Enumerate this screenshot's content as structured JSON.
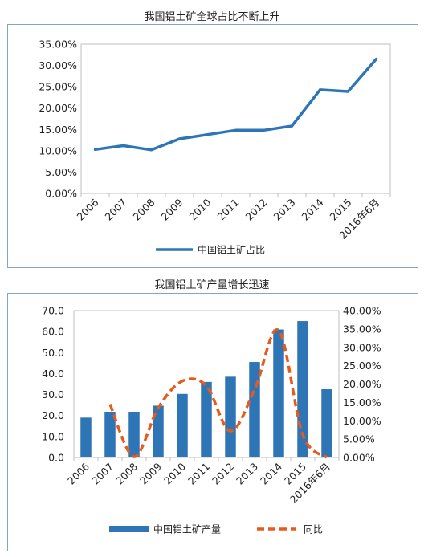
{
  "chart_data": [
    {
      "type": "line",
      "title": "我国铝土矿全球占比不断上升",
      "categories": [
        "2006",
        "2007",
        "2008",
        "2009",
        "2010",
        "2011",
        "2012",
        "2013",
        "2014",
        "2015",
        "2016年6月"
      ],
      "series": [
        {
          "name": "中国铝土矿占比",
          "values": [
            10.3,
            11.2,
            10.2,
            12.8,
            13.8,
            14.8,
            14.8,
            15.8,
            24.3,
            23.9,
            31.5
          ],
          "color": "#2e75b6"
        }
      ],
      "ylim": [
        0,
        35
      ],
      "yticks": [
        "0.00%",
        "5.00%",
        "10.00%",
        "15.00%",
        "20.00%",
        "25.00%",
        "30.00%",
        "35.00%"
      ],
      "grid": false,
      "legend": "bottom"
    },
    {
      "type": "bar",
      "title": "我国铝土矿产量增长迅速",
      "categories": [
        "2006",
        "2007",
        "2008",
        "2009",
        "2010",
        "2011",
        "2012",
        "2013",
        "2014",
        "2015",
        "2016年6月"
      ],
      "series": [
        {
          "name": "中国铝土矿产量",
          "type": "bar",
          "axis": "left",
          "values": [
            19.0,
            21.8,
            21.8,
            24.7,
            30.3,
            36.0,
            38.5,
            45.5,
            61.0,
            65.0,
            32.5
          ],
          "color": "#2e75b6"
        },
        {
          "name": "同比",
          "type": "line",
          "axis": "right",
          "values": [
            null,
            14.5,
            0.2,
            13.5,
            20.8,
            19.5,
            7.2,
            18.5,
            34.6,
            6.2,
            0.0
          ],
          "color": "#e85a1b"
        }
      ],
      "ylim_left": [
        0,
        70
      ],
      "ylim_right": [
        0,
        40
      ],
      "yticks_left": [
        "0.0",
        "10.0",
        "20.0",
        "30.0",
        "40.0",
        "50.0",
        "60.0",
        "70.0"
      ],
      "yticks_right": [
        "0.00%",
        "5.00%",
        "10.00%",
        "15.00%",
        "20.00%",
        "25.00%",
        "30.00%",
        "35.00%",
        "40.00%"
      ],
      "grid": false,
      "legend": "bottom"
    }
  ]
}
